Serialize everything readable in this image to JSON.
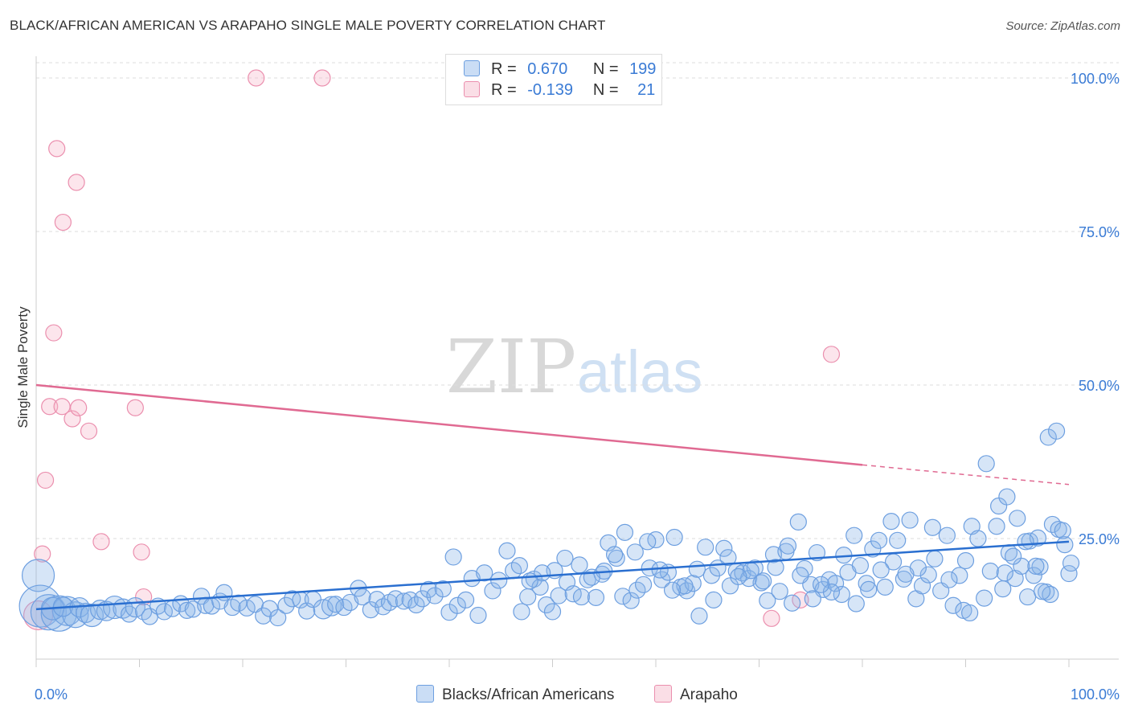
{
  "title": "BLACK/AFRICAN AMERICAN VS ARAPAHO SINGLE MALE POVERTY CORRELATION CHART",
  "source": "Source: ZipAtlas.com",
  "watermark": {
    "zip": "ZIP",
    "atlas": "atlas"
  },
  "legend": {
    "series1": {
      "r_label": "R =",
      "r_value": "0.670",
      "n_label": "N =",
      "n_value": "199"
    },
    "series2": {
      "r_label": "R =",
      "r_value": "-0.139",
      "n_label": "N =",
      "n_value": "21"
    }
  },
  "chart_data": {
    "type": "scatter",
    "title": "BLACK/AFRICAN AMERICAN VS ARAPAHO SINGLE MALE POVERTY CORRELATION CHART",
    "xlabel": "",
    "ylabel": "Single Male Poverty",
    "xlim": [
      0,
      100
    ],
    "ylim": [
      0,
      105
    ],
    "x_tick_labels": [
      "0.0%",
      "100.0%"
    ],
    "y_tick_labels": [
      "25.0%",
      "50.0%",
      "75.0%",
      "100.0%"
    ],
    "y_ticks": [
      25,
      50,
      75,
      100
    ],
    "grid": "horizontal dashed",
    "legend_position": "top-center",
    "series": [
      {
        "name": "Blacks/African Americans",
        "color": "#8ab4e8",
        "trend": {
          "x": [
            0,
            100
          ],
          "y": [
            13.5,
            24.5
          ],
          "color": "#2a6fd0"
        },
        "points": [
          [
            0.2,
            19,
            20
          ],
          [
            0.4,
            14,
            26
          ],
          [
            1.2,
            13,
            22
          ],
          [
            2.2,
            12.8,
            22
          ],
          [
            3.0,
            13.2,
            18
          ],
          [
            3.8,
            12.6,
            16
          ],
          [
            1.6,
            13.6,
            14
          ],
          [
            2.6,
            13.9,
            12
          ],
          [
            4.2,
            13.8,
            12
          ],
          [
            4.8,
            12.9,
            12
          ],
          [
            5.4,
            12.5,
            14
          ],
          [
            6.2,
            13.4,
            12
          ],
          [
            6.8,
            13.2,
            12
          ],
          [
            7.6,
            13.8,
            14
          ],
          [
            8.4,
            13.6,
            12
          ],
          [
            9.0,
            12.7,
            10
          ],
          [
            9.6,
            13.8,
            12
          ],
          [
            10.4,
            13.1,
            10
          ],
          [
            11.0,
            12.3,
            10
          ],
          [
            11.8,
            14.0,
            10
          ],
          [
            12.4,
            13.1,
            10
          ],
          [
            13.2,
            13.6,
            10
          ],
          [
            14.0,
            14.4,
            10
          ],
          [
            14.6,
            13.3,
            10
          ],
          [
            15.2,
            13.5,
            10
          ],
          [
            16.0,
            15.6,
            10
          ],
          [
            16.4,
            14.1,
            10
          ],
          [
            17.0,
            14.0,
            10
          ],
          [
            17.8,
            14.8,
            10
          ],
          [
            18.2,
            16.2,
            10
          ],
          [
            19.0,
            13.8,
            10
          ],
          [
            19.6,
            14.5,
            10
          ],
          [
            20.4,
            13.7,
            10
          ],
          [
            21.2,
            14.3,
            10
          ],
          [
            22.0,
            12.4,
            10
          ],
          [
            22.6,
            13.6,
            10
          ],
          [
            23.4,
            12.1,
            10
          ],
          [
            24.2,
            14.1,
            10
          ],
          [
            24.8,
            15.2,
            10
          ],
          [
            25.6,
            15.0,
            10
          ],
          [
            26.2,
            13.2,
            10
          ],
          [
            26.8,
            15.1,
            10
          ],
          [
            27.8,
            13.5,
            12
          ],
          [
            28.6,
            14.0,
            12
          ],
          [
            29.0,
            14.3,
            10
          ],
          [
            29.8,
            13.8,
            10
          ],
          [
            30.4,
            14.6,
            10
          ],
          [
            31.2,
            16.9,
            10
          ],
          [
            31.6,
            15.5,
            10
          ],
          [
            32.4,
            13.4,
            10
          ],
          [
            33.0,
            15.1,
            10
          ],
          [
            33.6,
            13.9,
            10
          ],
          [
            34.2,
            14.6,
            10
          ],
          [
            34.8,
            15.2,
            10
          ],
          [
            35.6,
            14.8,
            10
          ],
          [
            36.2,
            15.0,
            10
          ],
          [
            36.8,
            14.2,
            10
          ],
          [
            37.4,
            15.2,
            10
          ],
          [
            38.0,
            16.7,
            10
          ],
          [
            38.6,
            15.7,
            10
          ],
          [
            39.4,
            16.8,
            10
          ],
          [
            40.0,
            13.0,
            10
          ],
          [
            40.4,
            22.0,
            10
          ],
          [
            40.8,
            14.1,
            10
          ],
          [
            41.6,
            15.0,
            10
          ],
          [
            42.2,
            18.5,
            10
          ],
          [
            42.8,
            12.5,
            10
          ],
          [
            43.4,
            19.4,
            10
          ],
          [
            44.2,
            16.5,
            10
          ],
          [
            44.8,
            18.2,
            10
          ],
          [
            45.6,
            23.0,
            10
          ],
          [
            46.2,
            19.8,
            10
          ],
          [
            46.8,
            20.6,
            10
          ],
          [
            47.6,
            15.5,
            10
          ],
          [
            48.2,
            18.4,
            10
          ],
          [
            48.8,
            17.1,
            10
          ],
          [
            49.4,
            14.2,
            10
          ],
          [
            50.0,
            13.1,
            10
          ],
          [
            50.6,
            15.7,
            10
          ],
          [
            51.4,
            17.9,
            10
          ],
          [
            52.0,
            16.0,
            10
          ],
          [
            52.8,
            15.5,
            10
          ],
          [
            53.4,
            18.3,
            10
          ],
          [
            54.2,
            15.4,
            10
          ],
          [
            54.8,
            19.2,
            10
          ],
          [
            55.4,
            24.3,
            10
          ],
          [
            56.2,
            21.8,
            10
          ],
          [
            56.8,
            15.6,
            10
          ],
          [
            57.6,
            14.9,
            10
          ],
          [
            58.2,
            16.6,
            10
          ],
          [
            58.8,
            17.5,
            10
          ],
          [
            59.4,
            20.2,
            10
          ],
          [
            60.0,
            24.8,
            10
          ],
          [
            60.6,
            18.3,
            10
          ],
          [
            61.2,
            19.5,
            10
          ],
          [
            61.8,
            25.2,
            10
          ],
          [
            62.4,
            17.1,
            10
          ],
          [
            63.0,
            16.5,
            10
          ],
          [
            63.6,
            17.7,
            10
          ],
          [
            64.2,
            12.4,
            10
          ],
          [
            64.8,
            23.6,
            10
          ],
          [
            65.4,
            19.0,
            10
          ],
          [
            66.0,
            20.2,
            10
          ],
          [
            66.6,
            23.4,
            10
          ],
          [
            67.2,
            17.3,
            10
          ],
          [
            67.8,
            19.7,
            10
          ],
          [
            68.4,
            19.4,
            10
          ],
          [
            69.0,
            18.5,
            10
          ],
          [
            69.6,
            20.2,
            10
          ],
          [
            70.2,
            17.8,
            10
          ],
          [
            70.8,
            14.9,
            10
          ],
          [
            71.4,
            22.4,
            10
          ],
          [
            72.0,
            16.4,
            10
          ],
          [
            72.6,
            22.9,
            10
          ],
          [
            73.2,
            14.5,
            10
          ],
          [
            73.8,
            27.7,
            10
          ],
          [
            74.4,
            20.1,
            10
          ],
          [
            75.0,
            17.5,
            10
          ],
          [
            75.6,
            22.7,
            10
          ],
          [
            76.2,
            16.7,
            10
          ],
          [
            76.8,
            18.3,
            10
          ],
          [
            77.4,
            17.7,
            10
          ],
          [
            78.0,
            15.9,
            10
          ],
          [
            78.6,
            19.5,
            10
          ],
          [
            79.2,
            25.5,
            10
          ],
          [
            79.8,
            20.6,
            10
          ],
          [
            80.4,
            17.7,
            10
          ],
          [
            81.0,
            23.3,
            10
          ],
          [
            81.6,
            24.7,
            10
          ],
          [
            82.2,
            17.1,
            10
          ],
          [
            82.8,
            27.8,
            10
          ],
          [
            83.4,
            24.7,
            10
          ],
          [
            84.0,
            18.4,
            10
          ],
          [
            84.6,
            28.0,
            10
          ],
          [
            85.2,
            15.2,
            10
          ],
          [
            85.8,
            17.3,
            10
          ],
          [
            86.4,
            19.1,
            10
          ],
          [
            87.0,
            21.7,
            10
          ],
          [
            87.6,
            16.5,
            10
          ],
          [
            88.2,
            25.5,
            10
          ],
          [
            88.8,
            14.1,
            10
          ],
          [
            89.4,
            19.0,
            10
          ],
          [
            90.0,
            21.4,
            10
          ],
          [
            90.6,
            27.0,
            10
          ],
          [
            91.2,
            25.0,
            10
          ],
          [
            91.8,
            15.3,
            10
          ],
          [
            92.4,
            19.7,
            10
          ],
          [
            93.0,
            27.0,
            10
          ],
          [
            93.6,
            16.8,
            10
          ],
          [
            94.2,
            22.7,
            10
          ],
          [
            94.8,
            18.5,
            10
          ],
          [
            95.4,
            20.5,
            10
          ],
          [
            96.0,
            15.5,
            10
          ],
          [
            96.6,
            19.0,
            10
          ],
          [
            97.2,
            20.4,
            10
          ],
          [
            97.8,
            16.3,
            10
          ],
          [
            98.4,
            27.3,
            10
          ],
          [
            99.0,
            26.5,
            10
          ],
          [
            99.6,
            24.0,
            10
          ],
          [
            100.0,
            19.3,
            10
          ],
          [
            92.0,
            37.2,
            10
          ],
          [
            93.2,
            30.3,
            10
          ],
          [
            94.0,
            31.8,
            10
          ],
          [
            95.0,
            28.3,
            10
          ],
          [
            96.2,
            24.6,
            10
          ],
          [
            97.0,
            25.1,
            10
          ],
          [
            98.0,
            41.5,
            10
          ],
          [
            98.8,
            42.5,
            10
          ],
          [
            99.4,
            26.3,
            10
          ],
          [
            100.2,
            21.0,
            10
          ],
          [
            89.8,
            13.3,
            10
          ],
          [
            90.4,
            12.9,
            10
          ],
          [
            98.2,
            15.9,
            10
          ],
          [
            97.4,
            16.4,
            10
          ],
          [
            96.8,
            20.5,
            10
          ],
          [
            95.8,
            24.5,
            10
          ],
          [
            94.6,
            22.1,
            10
          ],
          [
            93.8,
            19.4,
            10
          ],
          [
            88.4,
            18.3,
            10
          ],
          [
            86.8,
            26.8,
            10
          ],
          [
            85.4,
            20.2,
            10
          ],
          [
            84.2,
            19.2,
            10
          ],
          [
            83.0,
            21.2,
            10
          ],
          [
            81.8,
            19.9,
            10
          ],
          [
            80.6,
            16.7,
            10
          ],
          [
            79.4,
            14.4,
            10
          ],
          [
            78.2,
            22.3,
            10
          ],
          [
            77.0,
            16.3,
            10
          ],
          [
            76.0,
            17.5,
            10
          ],
          [
            75.2,
            15.2,
            10
          ],
          [
            74.0,
            19.0,
            10
          ],
          [
            72.8,
            23.8,
            10
          ],
          [
            71.6,
            20.3,
            10
          ],
          [
            70.4,
            18.1,
            10
          ],
          [
            69.2,
            19.8,
            10
          ],
          [
            68.0,
            18.8,
            10
          ],
          [
            67.0,
            21.9,
            10
          ],
          [
            65.6,
            15.0,
            10
          ],
          [
            64.0,
            20.0,
            10
          ],
          [
            62.8,
            17.3,
            10
          ],
          [
            61.6,
            16.6,
            10
          ],
          [
            60.4,
            19.9,
            10
          ],
          [
            59.2,
            24.5,
            10
          ],
          [
            58.0,
            22.8,
            10
          ],
          [
            57.0,
            26.0,
            10
          ],
          [
            56.0,
            22.4,
            10
          ],
          [
            55.0,
            19.7,
            10
          ],
          [
            53.8,
            18.7,
            10
          ],
          [
            52.6,
            20.7,
            10
          ],
          [
            51.2,
            21.8,
            10
          ],
          [
            50.2,
            19.8,
            10
          ],
          [
            49.0,
            19.4,
            10
          ],
          [
            47.8,
            18.1,
            10
          ],
          [
            47.0,
            13.1,
            10
          ]
        ]
      },
      {
        "name": "Arapaho",
        "color": "#f5b5c8",
        "trend": {
          "x": [
            0,
            80
          ],
          "y": [
            50,
            37
          ],
          "dash_to": [
            100,
            33.8
          ],
          "color": "#e06a92"
        },
        "points": [
          [
            0.2,
            12.5,
            18
          ],
          [
            0.6,
            22.5,
            10
          ],
          [
            0.9,
            34.5,
            10
          ],
          [
            1.3,
            46.5,
            10
          ],
          [
            1.7,
            58.5,
            10
          ],
          [
            2.0,
            88.5,
            10
          ],
          [
            2.5,
            46.5,
            10
          ],
          [
            2.6,
            76.5,
            10
          ],
          [
            3.5,
            44.5,
            10
          ],
          [
            3.9,
            83.0,
            10
          ],
          [
            4.1,
            46.3,
            10
          ],
          [
            5.1,
            42.5,
            10
          ],
          [
            6.3,
            24.5,
            10
          ],
          [
            9.6,
            46.3,
            10
          ],
          [
            10.2,
            22.8,
            10
          ],
          [
            10.4,
            15.5,
            10
          ],
          [
            21.3,
            100,
            10
          ],
          [
            27.7,
            100,
            10
          ],
          [
            77.0,
            55.0,
            10
          ],
          [
            74.0,
            15.0,
            10
          ],
          [
            71.2,
            12.0,
            10
          ]
        ]
      }
    ]
  },
  "bottom_legend": {
    "series1_label": "Blacks/African Americans",
    "series2_label": "Arapaho"
  },
  "colors": {
    "blue_fill": "rgba(138,180,232,0.35)",
    "blue_stroke": "#6d9fe0",
    "blue_trend": "#2a6fd0",
    "pink_fill": "rgba(245,181,200,0.35)",
    "pink_stroke": "#eb8fae",
    "pink_trend": "#e06a92",
    "axis_label": "#3a7bd5"
  }
}
